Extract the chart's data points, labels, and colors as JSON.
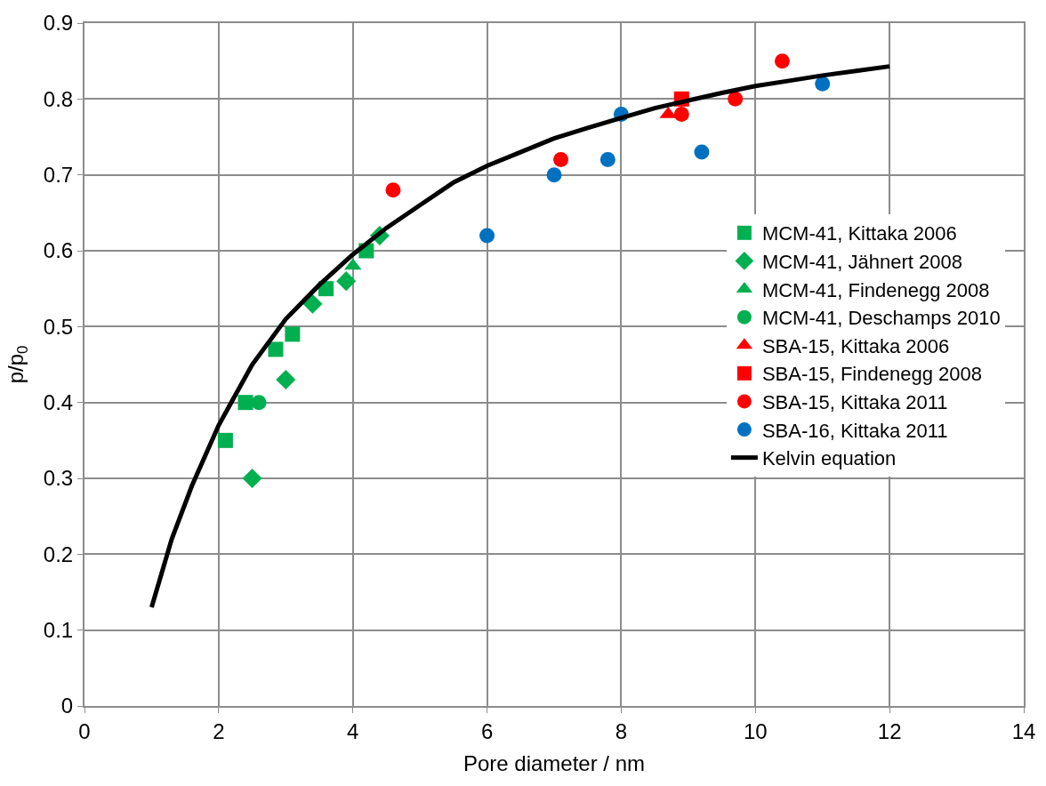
{
  "chart_data": {
    "type": "scatter",
    "xlabel": "Pore diameter / nm",
    "ylabel": "p/p$_{0}$",
    "xlim": [
      0,
      14
    ],
    "xticks": [
      0,
      2,
      4,
      6,
      8,
      10,
      12,
      14
    ],
    "ylim": [
      0,
      0.9
    ],
    "yticks": [
      0,
      0.1,
      0.2,
      0.3,
      0.4,
      0.5,
      0.6,
      0.7,
      0.8,
      0.9
    ],
    "grid": true,
    "legend": "right",
    "series": [
      {
        "name": "MCM-41, Kittaka 2006",
        "color": "#00b050",
        "marker": "square",
        "x": [
          2.1,
          2.4,
          2.85,
          3.1,
          3.6,
          4.2
        ],
        "values": [
          0.35,
          0.4,
          0.47,
          0.49,
          0.55,
          0.6
        ]
      },
      {
        "name": "MCM-41, Jähnert 2008",
        "color": "#00b050",
        "marker": "diamond",
        "x": [
          2.5,
          3.0,
          3.4,
          3.9,
          4.4
        ],
        "values": [
          0.3,
          0.43,
          0.53,
          0.56,
          0.62
        ]
      },
      {
        "name": "MCM-41, Findenegg 2008",
        "color": "#00b050",
        "marker": "triangle",
        "x": [
          4.0
        ],
        "values": [
          0.58
        ]
      },
      {
        "name": "MCM-41, Deschamps 2010",
        "color": "#00b050",
        "marker": "circle",
        "x": [
          2.6
        ],
        "values": [
          0.4
        ]
      },
      {
        "name": "SBA-15, Kittaka 2006",
        "color": "#ff0000",
        "marker": "triangle",
        "x": [
          8.7
        ],
        "values": [
          0.78
        ]
      },
      {
        "name": "SBA-15, Findenegg 2008",
        "color": "#ff0000",
        "marker": "square",
        "x": [
          8.9
        ],
        "values": [
          0.8
        ]
      },
      {
        "name": "SBA-15, Kittaka 2011",
        "color": "#ff0000",
        "marker": "circle",
        "x": [
          4.6,
          7.1,
          8.9,
          9.7,
          10.4
        ],
        "values": [
          0.68,
          0.72,
          0.78,
          0.8,
          0.85
        ]
      },
      {
        "name": "SBA-16, Kittaka 2011",
        "color": "#0070c0",
        "marker": "circle",
        "x": [
          6.0,
          7.0,
          7.8,
          8.0,
          9.2,
          11.0
        ],
        "values": [
          0.62,
          0.7,
          0.72,
          0.78,
          0.73,
          0.82
        ]
      },
      {
        "name": "Kelvin equation",
        "color": "#000000",
        "type": "line",
        "marker": "none",
        "line_style": "solid",
        "x": [
          1,
          1.3,
          1.6,
          2,
          2.5,
          3,
          3.5,
          4,
          4.5,
          5,
          5.5,
          6,
          6.5,
          7,
          7.5,
          8,
          8.5,
          9,
          9.5,
          10,
          10.5,
          11,
          11.5,
          12
        ],
        "values": [
          0.13,
          0.22,
          0.29,
          0.37,
          0.45,
          0.51,
          0.555,
          0.595,
          0.63,
          0.66,
          0.69,
          0.712,
          0.73,
          0.748,
          0.762,
          0.775,
          0.788,
          0.798,
          0.808,
          0.817,
          0.824,
          0.831,
          0.837,
          0.843
        ]
      }
    ]
  }
}
